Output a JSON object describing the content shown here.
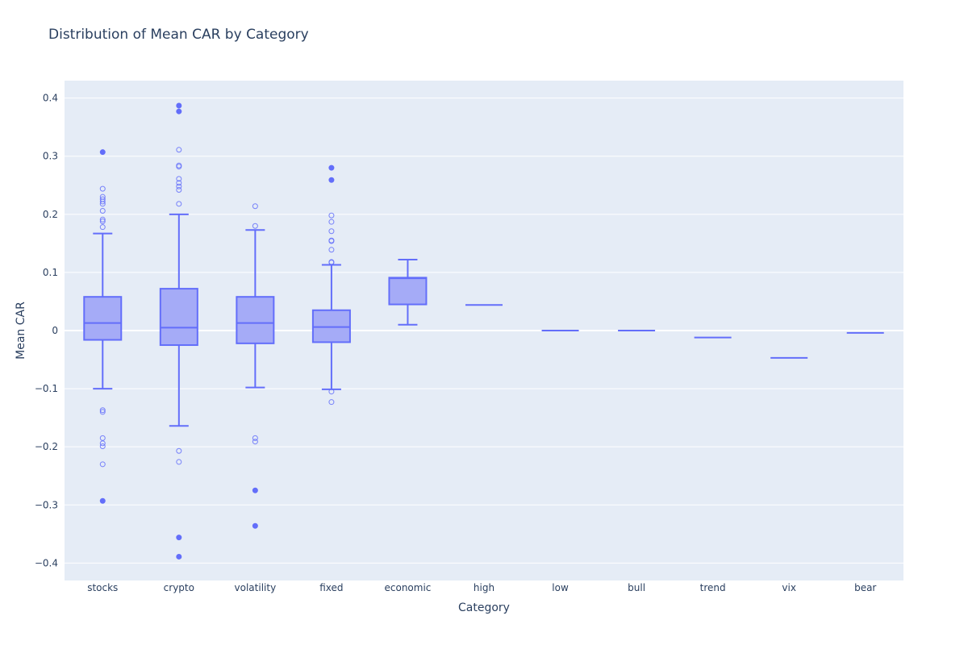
{
  "chart_data": {
    "type": "box",
    "title": "Distribution of Mean CAR by Category",
    "xlabel": "Category",
    "ylabel": "Mean CAR",
    "ylim": [
      -0.43,
      0.43
    ],
    "yticks": [
      0.4,
      0.3,
      0.2,
      0.1,
      0,
      -0.1,
      -0.2,
      -0.3,
      -0.4
    ],
    "ytick_labels": [
      "0.4",
      "0.3",
      "0.2",
      "0.1",
      "0",
      "−0.1",
      "−0.2",
      "−0.3",
      "−0.4"
    ],
    "grid": true,
    "colors": {
      "box_line": "#636efa",
      "box_fill": "#a5abf7",
      "plot_bg": "#e5ecf6",
      "grid": "#ffffff",
      "text": "#2a3f5f"
    },
    "categories": [
      "stocks",
      "crypto",
      "volatility",
      "fixed",
      "economic",
      "high",
      "low",
      "bull",
      "trend",
      "vix",
      "bear"
    ],
    "boxes": [
      {
        "category": "stocks",
        "lower_fence": -0.1,
        "q1": -0.016,
        "median": 0.013,
        "q3": 0.058,
        "upper_fence": 0.167,
        "suspected_outliers": [
          0.244,
          0.23,
          0.226,
          0.222,
          0.218,
          0.206,
          0.191,
          0.188,
          0.178,
          -0.137,
          -0.14,
          -0.185,
          -0.194,
          -0.199,
          -0.23
        ],
        "outliers": [
          0.307,
          -0.293
        ]
      },
      {
        "category": "crypto",
        "lower_fence": -0.164,
        "q1": -0.025,
        "median": 0.005,
        "q3": 0.072,
        "upper_fence": 0.2,
        "suspected_outliers": [
          0.311,
          0.284,
          0.282,
          0.261,
          0.254,
          0.248,
          0.242,
          0.218,
          -0.207,
          -0.226
        ],
        "outliers": [
          0.387,
          0.377,
          -0.356,
          -0.389
        ]
      },
      {
        "category": "volatility",
        "lower_fence": -0.098,
        "q1": -0.022,
        "median": 0.013,
        "q3": 0.058,
        "upper_fence": 0.173,
        "suspected_outliers": [
          0.214,
          0.18,
          -0.185,
          -0.191
        ],
        "outliers": [
          -0.275,
          -0.336
        ]
      },
      {
        "category": "fixed",
        "lower_fence": -0.101,
        "q1": -0.02,
        "median": 0.006,
        "q3": 0.035,
        "upper_fence": 0.113,
        "suspected_outliers": [
          0.198,
          0.187,
          0.171,
          0.155,
          0.154,
          0.139,
          0.118,
          0.117,
          -0.105,
          -0.123
        ],
        "outliers": [
          0.28,
          0.259
        ]
      },
      {
        "category": "economic",
        "lower_fence": 0.01,
        "q1": 0.045,
        "median": 0.09,
        "q3": 0.091,
        "upper_fence": 0.122,
        "suspected_outliers": [],
        "outliers": []
      },
      {
        "category": "high",
        "lower_fence": 0.044,
        "q1": 0.044,
        "median": 0.044,
        "q3": 0.044,
        "upper_fence": 0.044,
        "suspected_outliers": [],
        "outliers": []
      },
      {
        "category": "low",
        "lower_fence": 0.0,
        "q1": 0.0,
        "median": 0.0,
        "q3": 0.0,
        "upper_fence": 0.0,
        "suspected_outliers": [],
        "outliers": []
      },
      {
        "category": "bull",
        "lower_fence": 0.0,
        "q1": 0.0,
        "median": 0.0,
        "q3": 0.0,
        "upper_fence": 0.0,
        "suspected_outliers": [],
        "outliers": []
      },
      {
        "category": "trend",
        "lower_fence": -0.012,
        "q1": -0.012,
        "median": -0.012,
        "q3": -0.012,
        "upper_fence": -0.012,
        "suspected_outliers": [],
        "outliers": []
      },
      {
        "category": "vix",
        "lower_fence": -0.047,
        "q1": -0.047,
        "median": -0.047,
        "q3": -0.047,
        "upper_fence": -0.047,
        "suspected_outliers": [],
        "outliers": []
      },
      {
        "category": "bear",
        "lower_fence": -0.004,
        "q1": -0.004,
        "median": -0.004,
        "q3": -0.004,
        "upper_fence": -0.004,
        "suspected_outliers": [],
        "outliers": []
      }
    ]
  }
}
